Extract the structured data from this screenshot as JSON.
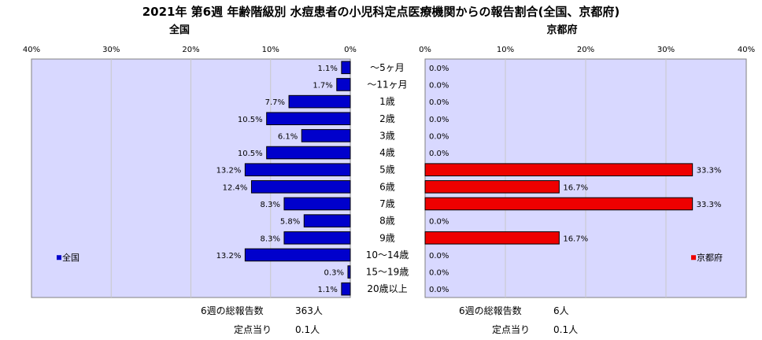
{
  "title": "2021年 第6週 年齢階級別 水痘患者の小児科定点医療機関からの報告割合(全国、京都府)",
  "colors": {
    "national": "#0000cc",
    "kyoto": "#ee0000",
    "plot_bg": "#d8d8ff",
    "grid": "#c8c8c8"
  },
  "chart_data": [
    {
      "type": "bar",
      "orientation": "horizontal",
      "direction": "right-to-left",
      "title": "全国",
      "categories": [
        "～5ヶ月",
        "～11ヶ月",
        "1歳",
        "2歳",
        "3歳",
        "4歳",
        "5歳",
        "6歳",
        "7歳",
        "8歳",
        "9歳",
        "10～14歳",
        "15～19歳",
        "20歳以上"
      ],
      "series": [
        {
          "name": "全国",
          "values": [
            1.1,
            1.7,
            7.7,
            10.5,
            6.1,
            10.5,
            13.2,
            12.4,
            8.3,
            5.8,
            8.3,
            13.2,
            0.3,
            1.1
          ]
        }
      ],
      "value_labels": [
        "1.1%",
        "1.7%",
        "7.7%",
        "10.5%",
        "6.1%",
        "10.5%",
        "13.2%",
        "12.4%",
        "8.3%",
        "5.8%",
        "8.3%",
        "13.2%",
        "0.3%",
        "1.1%"
      ],
      "xlim": [
        0,
        40
      ],
      "xticks": [
        "40%",
        "30%",
        "20%",
        "10%",
        "0%"
      ],
      "legend": "center-left",
      "grid": true
    },
    {
      "type": "bar",
      "orientation": "horizontal",
      "direction": "left-to-right",
      "title": "京都府",
      "categories": [
        "～5ヶ月",
        "～11ヶ月",
        "1歳",
        "2歳",
        "3歳",
        "4歳",
        "5歳",
        "6歳",
        "7歳",
        "8歳",
        "9歳",
        "10～14歳",
        "15～19歳",
        "20歳以上"
      ],
      "series": [
        {
          "name": "京都府",
          "values": [
            0,
            0,
            0,
            0,
            0,
            0,
            33.3,
            16.7,
            33.3,
            0,
            16.7,
            0,
            0,
            0
          ]
        }
      ],
      "value_labels": [
        "0.0%",
        "0.0%",
        "0.0%",
        "0.0%",
        "0.0%",
        "0.0%",
        "33.3%",
        "16.7%",
        "33.3%",
        "0.0%",
        "16.7%",
        "0.0%",
        "0.0%",
        "0.0%"
      ],
      "xlim": [
        0,
        40
      ],
      "xticks": [
        "0%",
        "10%",
        "20%",
        "30%",
        "40%"
      ],
      "legend": "center-right",
      "grid": true
    }
  ],
  "stats": {
    "national": {
      "total_label": "6週の総報告数",
      "total_value": "363人",
      "per_label": "定点当り",
      "per_value": "0.1人"
    },
    "kyoto": {
      "total_label": "6週の総報告数",
      "total_value": "6人",
      "per_label": "定点当り",
      "per_value": "0.1人"
    }
  }
}
